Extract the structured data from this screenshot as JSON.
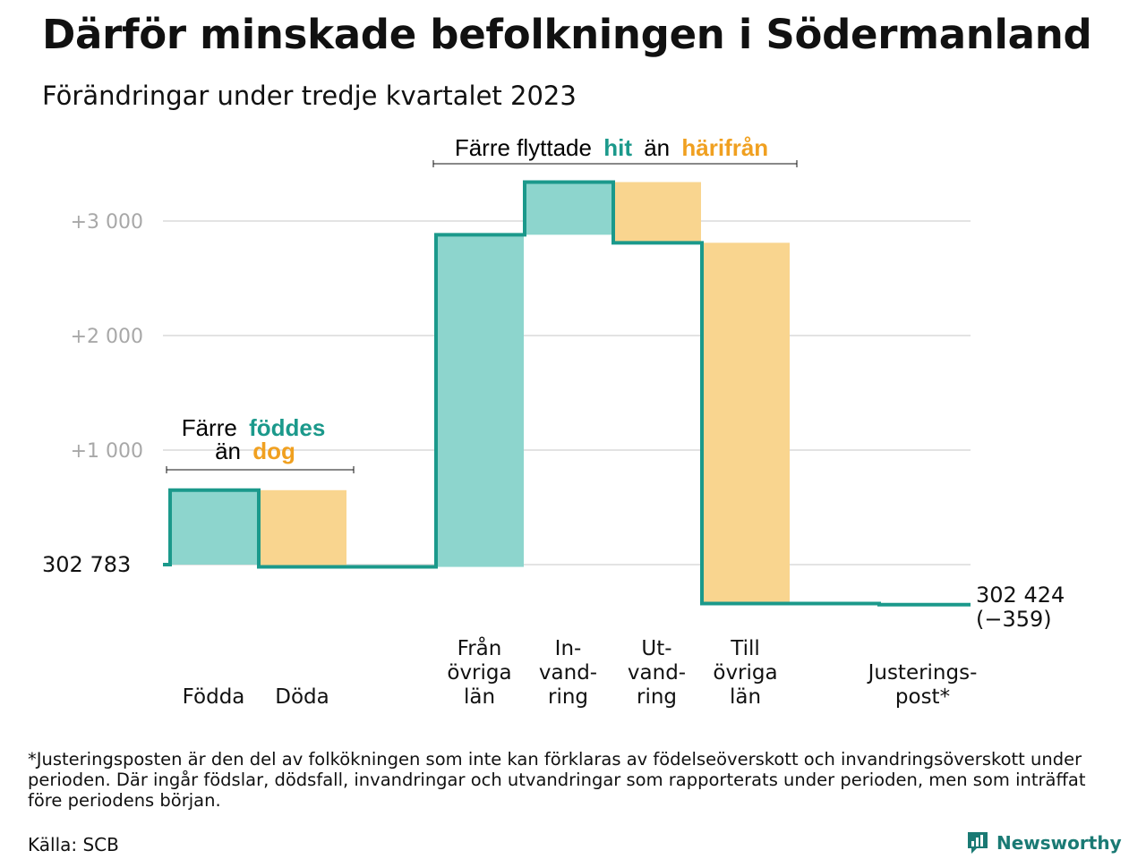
{
  "title": "Därför minskade befolkningen i Södermanland",
  "subtitle": "Förändringar under tredje kvartalet 2023",
  "colors": {
    "teal": "#8dd5cd",
    "yellow": "#f9d58f",
    "line": "#1b998b",
    "accent_teal": "#1b998b",
    "accent_orange": "#f0a020",
    "grid": "#e3e3e3",
    "tick": "#a8a8a8"
  },
  "annotations": {
    "births": {
      "line1": "Färre",
      "highlight1": "föddes",
      "line2": "än",
      "highlight2": "dog"
    },
    "migration": {
      "pre": "Färre flyttade",
      "highlight1": "hit",
      "mid": "än",
      "highlight2": "härifrån"
    }
  },
  "chart_data": {
    "type": "waterfall",
    "baseline_value": 302783,
    "baseline_label": "302   783",
    "end_label": "302 424",
    "end_change_label": "(−359)",
    "y_relative_range": [
      -450,
      3400
    ],
    "yticks": [
      {
        "value": 1000,
        "label": "+1   000"
      },
      {
        "value": 2000,
        "label": "+2   000"
      },
      {
        "value": 3000,
        "label": "+3   000"
      }
    ],
    "grid": true,
    "steps": [
      {
        "category": "Födda",
        "lines": [
          "Födda"
        ],
        "change": 650,
        "color": "teal"
      },
      {
        "category": "Döda",
        "lines": [
          "Döda"
        ],
        "change": -670,
        "color": "yellow"
      },
      {
        "category": "Från övriga län",
        "lines": [
          "Från",
          "övriga",
          "län"
        ],
        "change": 2900,
        "color": "teal"
      },
      {
        "category": "Invandring",
        "lines": [
          "In-",
          "vand-",
          "ring"
        ],
        "change": 460,
        "color": "teal"
      },
      {
        "category": "Utvandring",
        "lines": [
          "Ut-",
          "vand-",
          "ring"
        ],
        "change": -530,
        "color": "yellow"
      },
      {
        "category": "Till övriga län",
        "lines": [
          "Till",
          "övriga",
          "län"
        ],
        "change": -3150,
        "color": "yellow"
      },
      {
        "category": "Justeringspost",
        "lines": [
          "Justerings-",
          "post*"
        ],
        "change": -10,
        "color": "yellow"
      }
    ]
  },
  "footnote": "*Justeringsposten är den del av folkökningen som inte kan förklaras av födelseöverskott och invandringsöverskott under perioden. Där ingår födslar, dödsfall, invandringar och utvandringar som rapporterats under perioden, men som inträffat före periodens början.",
  "source": "Källa: SCB",
  "brand": "Newsworthy"
}
